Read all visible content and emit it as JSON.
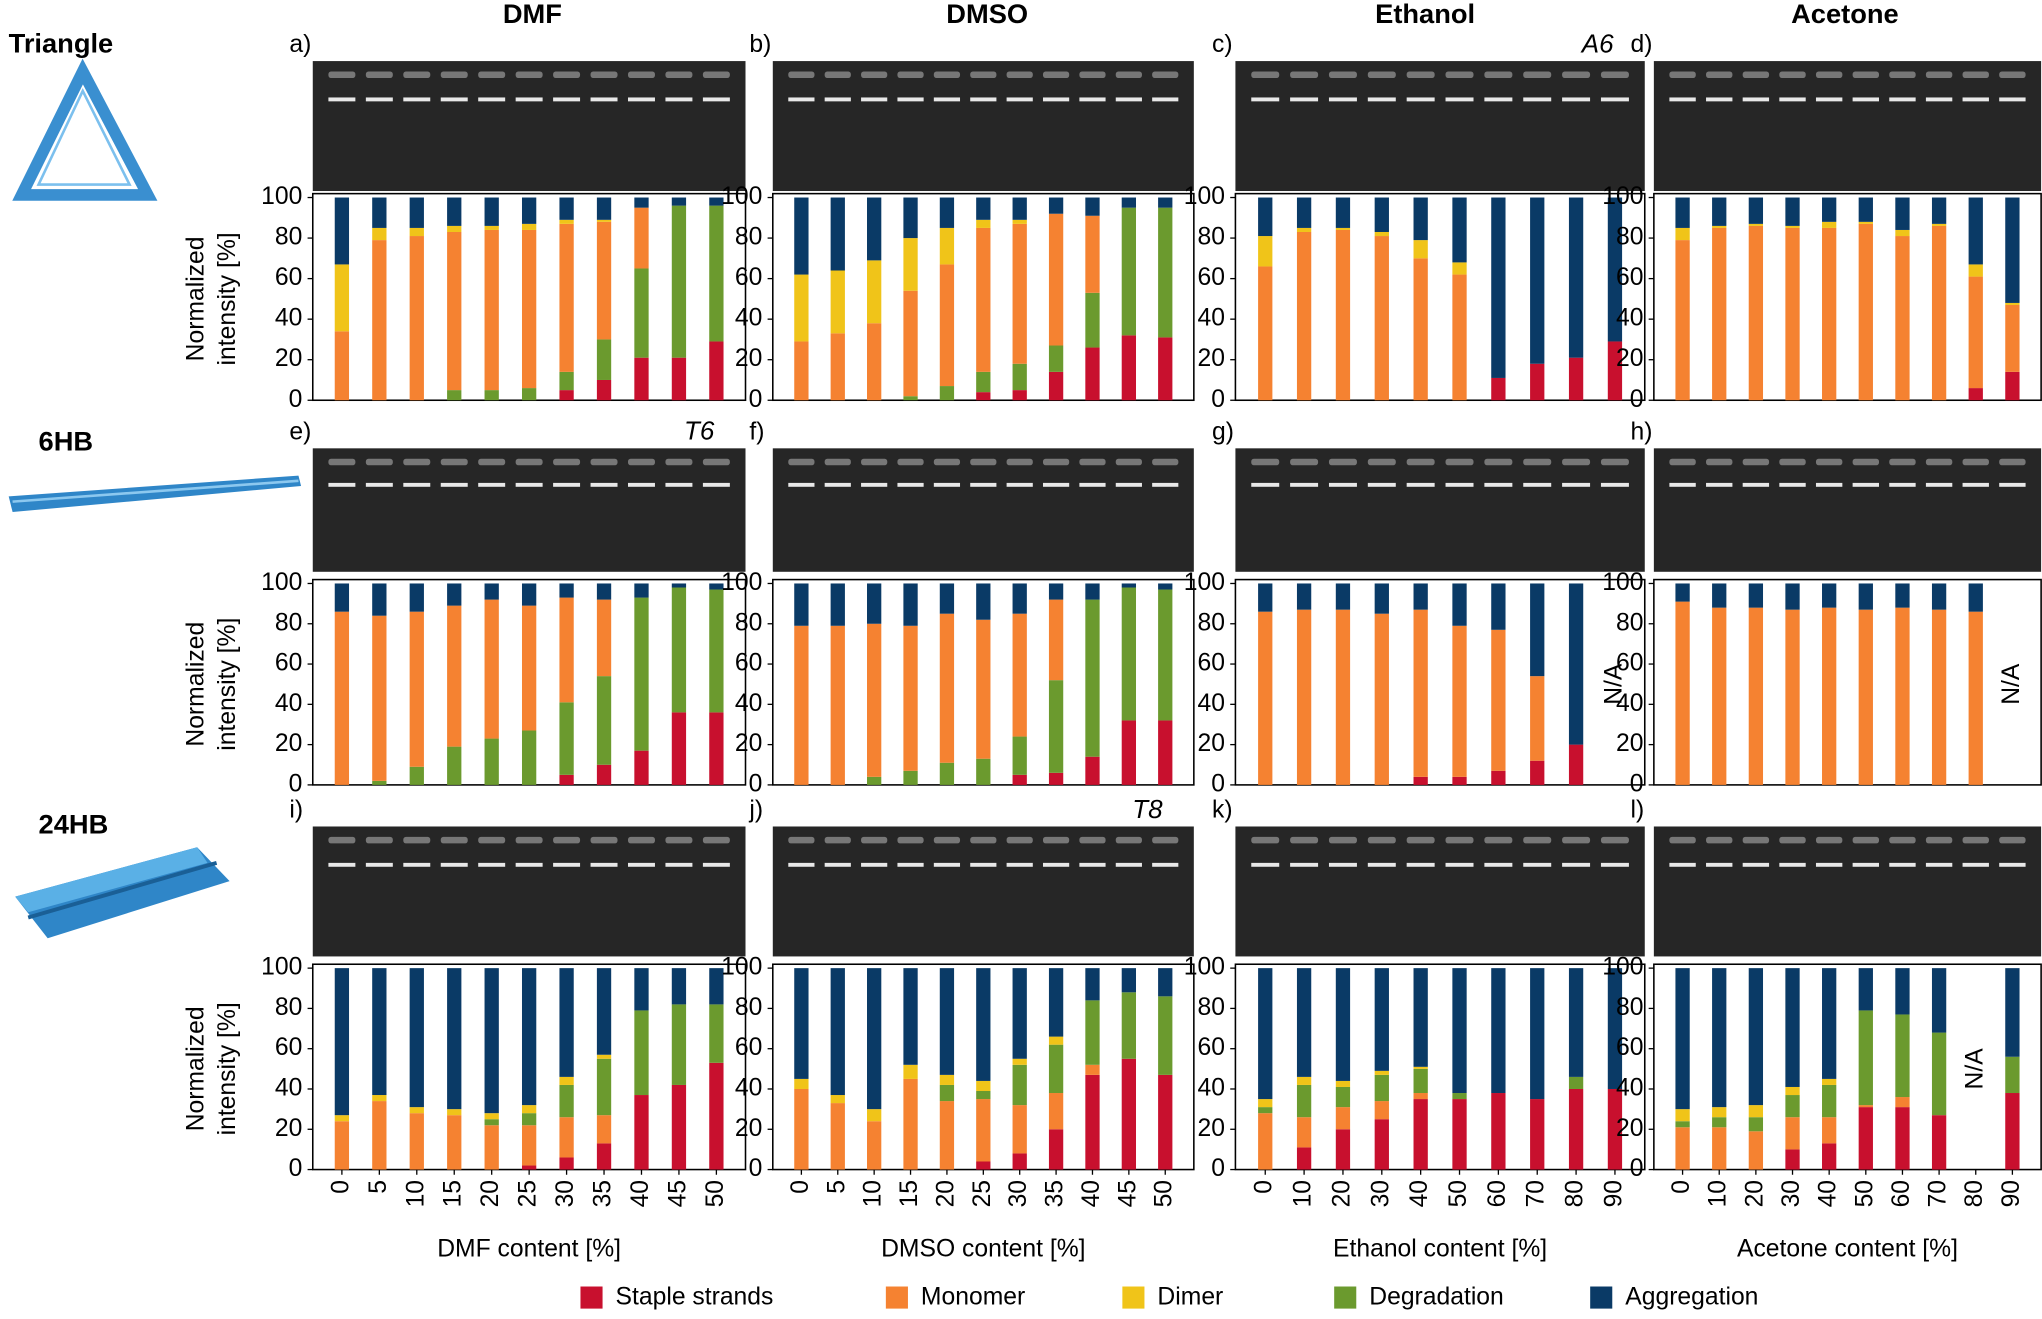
{
  "column_titles": [
    "DMF",
    "DMSO",
    "Ethanol",
    "Acetone"
  ],
  "row_titles": [
    "Triangle",
    "6HB",
    "24HB"
  ],
  "legend": [
    {
      "name": "Staple strands",
      "color": "#c8102e"
    },
    {
      "name": "Monomer",
      "color": "#f58231"
    },
    {
      "name": "Dimer",
      "color": "#f0c419"
    },
    {
      "name": "Degradation",
      "color": "#6b9a2e"
    },
    {
      "name": "Aggregation",
      "color": "#0a3a66"
    }
  ],
  "chart_data": [
    {
      "type": "bar",
      "stacked": true,
      "label": "a)",
      "ylabel_lines": [
        "Normalized",
        "intensity [%]"
      ],
      "ylim": [
        0,
        100
      ],
      "yticks": [
        0,
        20,
        40,
        60,
        80,
        100
      ],
      "series": [
        {
          "values": [
            0,
            0,
            0,
            0,
            0,
            0,
            5,
            10,
            21,
            21,
            29
          ]
        },
        {
          "values": [
            34,
            79,
            81,
            78,
            79,
            78,
            73,
            58,
            30,
            0,
            0
          ]
        },
        {
          "values": [
            33,
            6,
            4,
            3,
            2,
            3,
            2,
            1,
            0,
            0,
            0
          ]
        },
        {
          "values": [
            0,
            0,
            0,
            5,
            5,
            6,
            9,
            20,
            44,
            75,
            67
          ]
        },
        {
          "values": [
            33,
            15,
            15,
            14,
            14,
            13,
            11,
            11,
            5,
            4,
            4
          ]
        }
      ]
    },
    {
      "type": "bar",
      "stacked": true,
      "label": "b)",
      "ylim": [
        0,
        100
      ],
      "yticks": [
        0,
        20,
        40,
        60,
        80,
        100
      ],
      "series": [
        {
          "values": [
            0,
            0,
            0,
            0,
            0,
            4,
            5,
            14,
            26,
            32,
            31
          ]
        },
        {
          "values": [
            29,
            33,
            38,
            52,
            60,
            71,
            69,
            65,
            38,
            0,
            0
          ]
        },
        {
          "values": [
            33,
            31,
            31,
            26,
            18,
            4,
            2,
            0,
            0,
            0,
            0
          ]
        },
        {
          "values": [
            0,
            0,
            0,
            2,
            7,
            10,
            13,
            13,
            27,
            63,
            64
          ]
        },
        {
          "values": [
            38,
            36,
            31,
            20,
            15,
            11,
            11,
            8,
            9,
            5,
            5
          ]
        }
      ]
    },
    {
      "type": "bar",
      "stacked": true,
      "label": "c)",
      "annotation": "A6",
      "ylim": [
        0,
        100
      ],
      "yticks": [
        0,
        20,
        40,
        60,
        80,
        100
      ],
      "series": [
        {
          "values": [
            0,
            0,
            0,
            0,
            0,
            0,
            11,
            18,
            21,
            29
          ]
        },
        {
          "values": [
            66,
            83,
            84,
            81,
            70,
            62,
            0,
            0,
            0,
            0
          ]
        },
        {
          "values": [
            15,
            2,
            1,
            2,
            9,
            6,
            0,
            0,
            0,
            0
          ]
        },
        {
          "values": [
            0,
            0,
            0,
            0,
            0,
            0,
            0,
            0,
            0,
            0
          ]
        },
        {
          "values": [
            19,
            15,
            15,
            17,
            21,
            32,
            89,
            82,
            79,
            71
          ]
        }
      ]
    },
    {
      "type": "bar",
      "stacked": true,
      "label": "d)",
      "ylim": [
        0,
        100
      ],
      "yticks": [
        0,
        20,
        40,
        60,
        80,
        100
      ],
      "series": [
        {
          "values": [
            0,
            0,
            0,
            0,
            0,
            0,
            0,
            0,
            6,
            14
          ]
        },
        {
          "values": [
            79,
            85,
            86,
            85,
            85,
            87,
            81,
            86,
            55,
            33
          ]
        },
        {
          "values": [
            6,
            1,
            1,
            1,
            3,
            1,
            3,
            1,
            6,
            1
          ]
        },
        {
          "values": [
            0,
            0,
            0,
            0,
            0,
            0,
            0,
            0,
            0,
            0
          ]
        },
        {
          "values": [
            15,
            14,
            13,
            14,
            12,
            12,
            16,
            13,
            33,
            52
          ]
        }
      ]
    },
    {
      "type": "bar",
      "stacked": true,
      "label": "e)",
      "annotation": "T6",
      "ylabel_lines": [
        "Normalized",
        "intensity [%]"
      ],
      "ylim": [
        0,
        100
      ],
      "yticks": [
        0,
        20,
        40,
        60,
        80,
        100
      ],
      "series": [
        {
          "values": [
            0,
            0,
            0,
            0,
            0,
            0,
            5,
            10,
            17,
            36,
            36
          ]
        },
        {
          "values": [
            86,
            82,
            77,
            70,
            69,
            62,
            52,
            38,
            0,
            0,
            0
          ]
        },
        {
          "values": [
            0,
            0,
            0,
            0,
            0,
            0,
            0,
            0,
            0,
            0,
            0
          ]
        },
        {
          "values": [
            0,
            2,
            9,
            19,
            23,
            27,
            36,
            44,
            76,
            62,
            61
          ]
        },
        {
          "values": [
            14,
            16,
            14,
            11,
            8,
            11,
            7,
            8,
            7,
            2,
            3
          ]
        }
      ]
    },
    {
      "type": "bar",
      "stacked": true,
      "label": "f)",
      "ylim": [
        0,
        100
      ],
      "yticks": [
        0,
        20,
        40,
        60,
        80,
        100
      ],
      "series": [
        {
          "values": [
            0,
            0,
            0,
            0,
            0,
            0,
            5,
            6,
            14,
            32,
            32
          ]
        },
        {
          "values": [
            79,
            79,
            76,
            72,
            74,
            69,
            61,
            40,
            0,
            0,
            0
          ]
        },
        {
          "values": [
            0,
            0,
            0,
            0,
            0,
            0,
            0,
            0,
            0,
            0,
            0
          ]
        },
        {
          "values": [
            0,
            0,
            4,
            7,
            11,
            13,
            19,
            46,
            78,
            66,
            65
          ]
        },
        {
          "values": [
            21,
            21,
            20,
            21,
            15,
            18,
            15,
            8,
            8,
            2,
            3
          ]
        }
      ]
    },
    {
      "type": "bar",
      "stacked": true,
      "label": "g)",
      "na_label": "N/A",
      "ylim": [
        0,
        100
      ],
      "yticks": [
        0,
        20,
        40,
        60,
        80,
        100
      ],
      "series": [
        {
          "values": [
            0,
            0,
            0,
            0,
            4,
            4,
            7,
            12,
            20,
            null
          ]
        },
        {
          "values": [
            86,
            87,
            87,
            85,
            83,
            75,
            70,
            42,
            0,
            null
          ]
        },
        {
          "values": [
            0,
            0,
            0,
            0,
            0,
            0,
            0,
            0,
            0,
            null
          ]
        },
        {
          "values": [
            0,
            0,
            0,
            0,
            0,
            0,
            0,
            0,
            0,
            null
          ]
        },
        {
          "values": [
            14,
            13,
            13,
            15,
            13,
            21,
            23,
            46,
            80,
            null
          ]
        }
      ]
    },
    {
      "type": "bar",
      "stacked": true,
      "label": "h)",
      "na_label": "N/A",
      "ylim": [
        0,
        100
      ],
      "yticks": [
        0,
        20,
        40,
        60,
        80,
        100
      ],
      "series": [
        {
          "values": [
            0,
            0,
            0,
            0,
            0,
            0,
            0,
            0,
            0,
            null
          ]
        },
        {
          "values": [
            91,
            88,
            88,
            87,
            88,
            87,
            88,
            87,
            86,
            null
          ]
        },
        {
          "values": [
            0,
            0,
            0,
            0,
            0,
            0,
            0,
            0,
            0,
            null
          ]
        },
        {
          "values": [
            0,
            0,
            0,
            0,
            0,
            0,
            0,
            0,
            0,
            null
          ]
        },
        {
          "values": [
            9,
            12,
            12,
            13,
            12,
            13,
            12,
            13,
            14,
            null
          ]
        }
      ]
    },
    {
      "type": "bar",
      "stacked": true,
      "label": "i)",
      "ylabel_lines": [
        "Normalized",
        "intensity [%]"
      ],
      "xlabel": "DMF content [%]",
      "categories": [
        0,
        5,
        10,
        15,
        20,
        25,
        30,
        35,
        40,
        45,
        50
      ],
      "ylim": [
        0,
        100
      ],
      "yticks": [
        0,
        20,
        40,
        60,
        80,
        100
      ],
      "series": [
        {
          "values": [
            0,
            0,
            0,
            0,
            0,
            2,
            6,
            13,
            37,
            42,
            53
          ]
        },
        {
          "values": [
            24,
            34,
            28,
            27,
            22,
            20,
            20,
            14,
            0,
            0,
            0
          ]
        },
        {
          "values": [
            3,
            3,
            3,
            3,
            3,
            4,
            4,
            2,
            0,
            0,
            0
          ]
        },
        {
          "values": [
            0,
            0,
            0,
            0,
            3,
            6,
            16,
            28,
            42,
            40,
            29
          ]
        },
        {
          "values": [
            73,
            63,
            69,
            70,
            72,
            68,
            54,
            43,
            21,
            18,
            18
          ]
        }
      ]
    },
    {
      "type": "bar",
      "stacked": true,
      "label": "j)",
      "annotation": "T8",
      "xlabel": "DMSO content [%]",
      "categories": [
        0,
        5,
        10,
        15,
        20,
        25,
        30,
        35,
        40,
        45,
        50
      ],
      "ylim": [
        0,
        100
      ],
      "yticks": [
        0,
        20,
        40,
        60,
        80,
        100
      ],
      "series": [
        {
          "values": [
            0,
            0,
            0,
            0,
            0,
            4,
            8,
            20,
            47,
            55,
            47
          ]
        },
        {
          "values": [
            40,
            33,
            24,
            45,
            34,
            31,
            24,
            18,
            5,
            0,
            0
          ]
        },
        {
          "values": [
            5,
            4,
            6,
            7,
            5,
            5,
            3,
            4,
            0,
            0,
            0
          ]
        },
        {
          "values": [
            0,
            0,
            0,
            0,
            8,
            4,
            20,
            24,
            32,
            33,
            39
          ]
        },
        {
          "values": [
            55,
            63,
            70,
            48,
            53,
            56,
            45,
            34,
            16,
            12,
            14
          ]
        }
      ]
    },
    {
      "type": "bar",
      "stacked": true,
      "label": "k)",
      "xlabel": "Ethanol content [%]",
      "categories": [
        0,
        10,
        20,
        30,
        40,
        50,
        60,
        70,
        80,
        90
      ],
      "ylim": [
        0,
        100
      ],
      "yticks": [
        0,
        20,
        40,
        60,
        80,
        100
      ],
      "series": [
        {
          "values": [
            0,
            11,
            20,
            25,
            35,
            35,
            38,
            35,
            40,
            40
          ]
        },
        {
          "values": [
            28,
            15,
            11,
            9,
            3,
            0,
            0,
            0,
            0,
            0
          ]
        },
        {
          "values": [
            4,
            4,
            3,
            2,
            1,
            0,
            0,
            0,
            0,
            0
          ]
        },
        {
          "values": [
            3,
            16,
            10,
            13,
            12,
            3,
            0,
            0,
            6,
            0
          ]
        },
        {
          "values": [
            65,
            54,
            56,
            51,
            49,
            62,
            62,
            65,
            54,
            60
          ]
        }
      ]
    },
    {
      "type": "bar",
      "stacked": true,
      "label": "l)",
      "na_label": "N/A",
      "xlabel": "Acetone content [%]",
      "categories": [
        0,
        10,
        20,
        30,
        40,
        50,
        60,
        70,
        80,
        90
      ],
      "ylim": [
        0,
        100
      ],
      "yticks": [
        0,
        20,
        40,
        60,
        80,
        100
      ],
      "series": [
        {
          "values": [
            0,
            0,
            0,
            10,
            13,
            31,
            31,
            27,
            null,
            38
          ]
        },
        {
          "values": [
            21,
            21,
            19,
            16,
            13,
            1,
            5,
            0,
            null,
            0
          ]
        },
        {
          "values": [
            6,
            5,
            6,
            4,
            3,
            0,
            0,
            0,
            null,
            0
          ]
        },
        {
          "values": [
            3,
            5,
            7,
            11,
            16,
            47,
            41,
            41,
            null,
            18
          ]
        },
        {
          "values": [
            70,
            69,
            68,
            59,
            55,
            21,
            23,
            32,
            null,
            44
          ]
        }
      ]
    }
  ]
}
